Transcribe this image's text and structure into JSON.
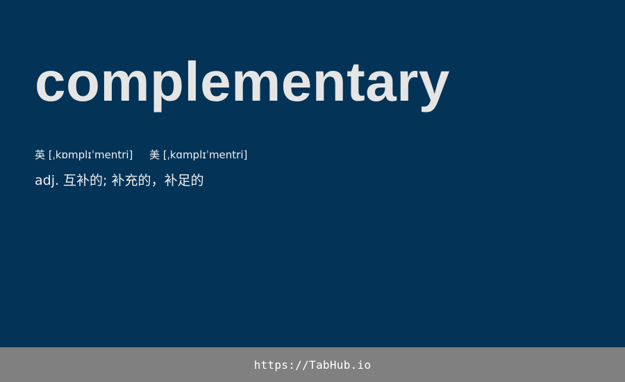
{
  "word": "complementary",
  "phonetics": {
    "uk_label": "英",
    "uk_ipa": "[ˌkɒmplɪˈmentri]",
    "us_label": "美",
    "us_ipa": "[ˌkɑmplɪˈmentri]"
  },
  "definition": "adj. 互补的; 补充的，补足的",
  "footer": {
    "url": "https://TabHub.io"
  },
  "colors": {
    "background": "#033356",
    "footer_background": "#808080",
    "word_text": "#e5e5e5",
    "body_text": "#f0f0f0"
  }
}
